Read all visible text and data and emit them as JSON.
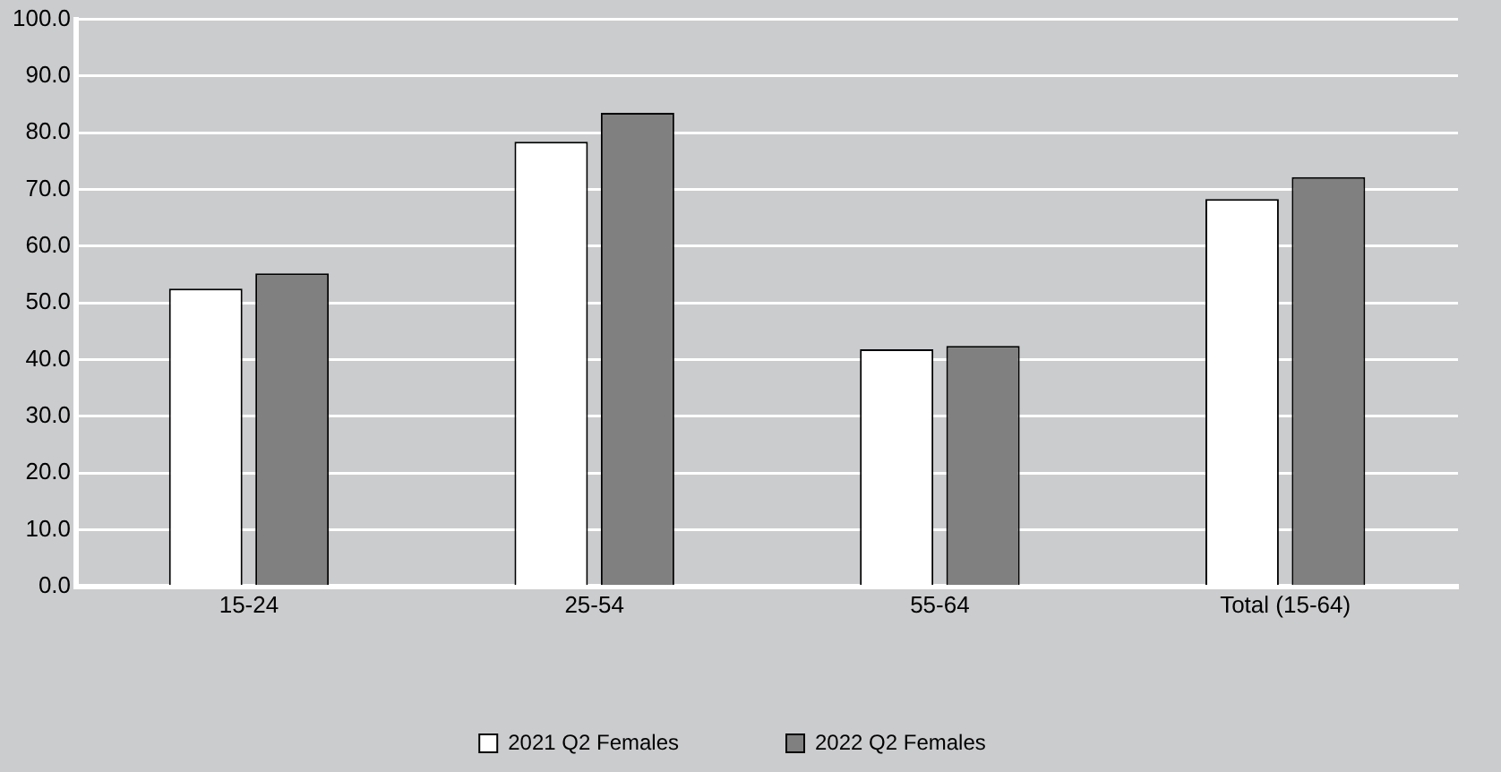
{
  "chart_data": {
    "type": "bar",
    "categories": [
      "15-24",
      "25-54",
      "55-64",
      "Total (15-64)"
    ],
    "series": [
      {
        "name": "2021 Q2 Females",
        "color": "#ffffff",
        "values": [
          52.5,
          78.4,
          41.8,
          68.3
        ]
      },
      {
        "name": "2022 Q2 Females",
        "color": "#808080",
        "values": [
          55.2,
          83.5,
          42.4,
          72.2
        ]
      }
    ],
    "ylim": [
      0,
      100
    ],
    "yticks": [
      {
        "value": 0,
        "label": "0.0"
      },
      {
        "value": 10,
        "label": "10.0"
      },
      {
        "value": 20,
        "label": "20.0"
      },
      {
        "value": 30,
        "label": "30.0"
      },
      {
        "value": 40,
        "label": "40.0"
      },
      {
        "value": 50,
        "label": "50.0"
      },
      {
        "value": 60,
        "label": "60.0"
      },
      {
        "value": 70,
        "label": "70.0"
      },
      {
        "value": 80,
        "label": "80.0"
      },
      {
        "value": 90,
        "label": "90.0"
      },
      {
        "value": 100,
        "label": "100.0"
      }
    ],
    "grid": "y",
    "legend": "bottom"
  }
}
